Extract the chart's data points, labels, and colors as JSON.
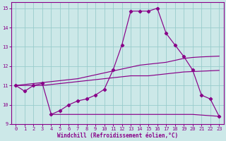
{
  "xlabel": "Windchill (Refroidissement éolien,°C)",
  "xlim": [
    -0.5,
    23.5
  ],
  "ylim": [
    9,
    15.3
  ],
  "yticks": [
    9,
    10,
    11,
    12,
    13,
    14,
    15
  ],
  "xticks": [
    0,
    1,
    2,
    3,
    4,
    5,
    6,
    7,
    8,
    9,
    10,
    11,
    12,
    13,
    14,
    15,
    16,
    17,
    18,
    19,
    20,
    21,
    22,
    23
  ],
  "background_color": "#cce8e8",
  "line_color": "#880088",
  "grid_color": "#99cccc",
  "line1_x": [
    0,
    1,
    2,
    3,
    4,
    5,
    6,
    7,
    8,
    9,
    10,
    11,
    12,
    13,
    14,
    15,
    16,
    17,
    18,
    19,
    20,
    21,
    22,
    23
  ],
  "line1_y": [
    11.0,
    10.7,
    11.0,
    11.1,
    9.5,
    9.7,
    10.0,
    10.2,
    10.3,
    10.5,
    10.8,
    11.8,
    13.1,
    14.85,
    14.85,
    14.85,
    15.0,
    13.7,
    13.1,
    12.5,
    11.8,
    10.5,
    10.3,
    9.4
  ],
  "line2_x": [
    0,
    1,
    2,
    3,
    4,
    5,
    6,
    7,
    8,
    9,
    10,
    11,
    12,
    13,
    14,
    15,
    16,
    17,
    18,
    19,
    20,
    21,
    22,
    23
  ],
  "line2_y": [
    11.0,
    11.05,
    11.1,
    11.15,
    11.2,
    11.25,
    11.3,
    11.35,
    11.45,
    11.55,
    11.65,
    11.75,
    11.85,
    11.95,
    12.05,
    12.1,
    12.15,
    12.2,
    12.3,
    12.4,
    12.45,
    12.48,
    12.5,
    12.52
  ],
  "line3_x": [
    0,
    1,
    2,
    3,
    4,
    5,
    6,
    7,
    8,
    9,
    10,
    11,
    12,
    13,
    14,
    15,
    16,
    17,
    18,
    19,
    20,
    21,
    22,
    23
  ],
  "line3_y": [
    11.0,
    11.0,
    11.0,
    11.0,
    11.05,
    11.1,
    11.15,
    11.2,
    11.25,
    11.3,
    11.35,
    11.4,
    11.45,
    11.5,
    11.5,
    11.5,
    11.55,
    11.6,
    11.65,
    11.7,
    11.72,
    11.74,
    11.76,
    11.78
  ],
  "line4_x": [
    4,
    20,
    23
  ],
  "line4_y": [
    9.5,
    9.5,
    9.4
  ]
}
